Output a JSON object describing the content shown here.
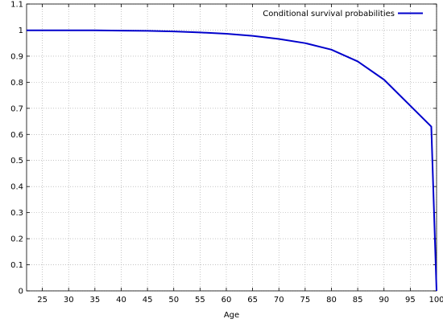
{
  "chart_data": {
    "type": "line",
    "title": "",
    "xlabel": "Age",
    "ylabel": "",
    "xlim": [
      22,
      100
    ],
    "ylim": [
      0,
      1.1
    ],
    "grid": true,
    "legend_position": "top-right",
    "x_ticks": [
      25,
      30,
      35,
      40,
      45,
      50,
      55,
      60,
      65,
      70,
      75,
      80,
      85,
      90,
      95,
      100
    ],
    "y_ticks": [
      0,
      0.1,
      0.2,
      0.3,
      0.4,
      0.5,
      0.6,
      0.7,
      0.8,
      0.9,
      1,
      1.1
    ],
    "series": [
      {
        "name": "Conditional survival probabilities",
        "color": "#0000cc",
        "x": [
          22,
          25,
          30,
          35,
          40,
          45,
          50,
          55,
          60,
          65,
          70,
          75,
          80,
          85,
          90,
          95,
          99,
          100
        ],
        "y": [
          0.999,
          0.999,
          0.999,
          0.999,
          0.998,
          0.997,
          0.995,
          0.991,
          0.986,
          0.978,
          0.966,
          0.95,
          0.925,
          0.88,
          0.81,
          0.71,
          0.63,
          0
        ]
      }
    ]
  }
}
